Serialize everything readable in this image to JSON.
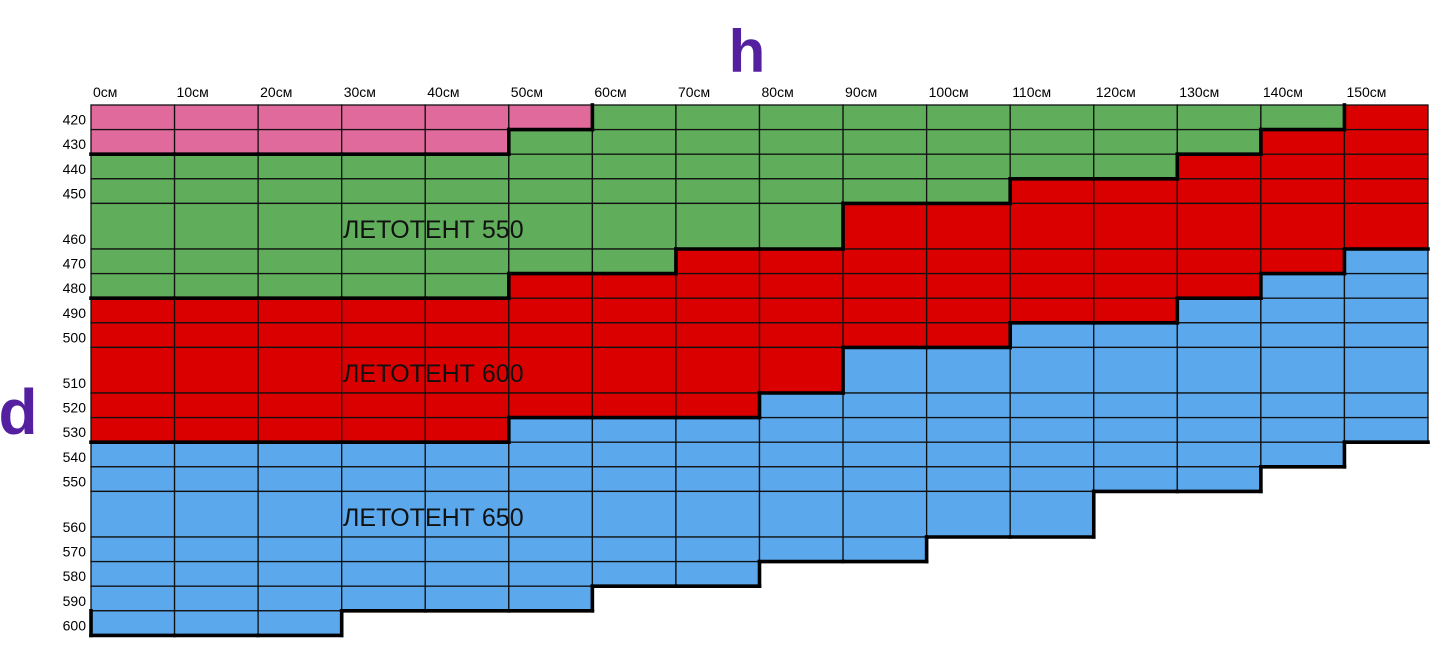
{
  "chart_data": {
    "type": "table",
    "x_axis_label": "h",
    "y_axis_label": "d",
    "columns": [
      "0см",
      "10см",
      "20см",
      "30см",
      "40см",
      "50см",
      "60см",
      "70см",
      "80см",
      "90см",
      "100см",
      "110см",
      "120см",
      "130см",
      "140см",
      "150см"
    ],
    "rows": [
      "420",
      "430",
      "440",
      "450",
      "460",
      "470",
      "480",
      "490",
      "500",
      "510",
      "520",
      "530",
      "540",
      "550",
      "560",
      "570",
      "580",
      "590",
      "600"
    ],
    "categories": [
      {
        "key": "P",
        "name": "",
        "color": "#e16a9c"
      },
      {
        "key": "G",
        "name": "ЛЕТОТЕНТ 550",
        "color": "#60ad5c"
      },
      {
        "key": "R",
        "name": "ЛЕТОТЕНТ 600",
        "color": "#db0000"
      },
      {
        "key": "B",
        "name": "ЛЕТОТЕНТ 650",
        "color": "#5ba8ec"
      }
    ],
    "grid": [
      "PPPPPPGGGGGGGGGR",
      "PPPPPGGGGGGGGGRR",
      "GGGGGGGGGGGGGRRR",
      "GGGGGGGGGGGRRRRR",
      "GGGGGGGGGRRRRRRR",
      "GGGGGGGRRRRRRRRB",
      "GGGGGRRRRRRRRRBB",
      "RRRRRRRRRRRRRBBB",
      "RRRRRRRRRRRBBBBB",
      "RRRRRRRRRBBBBBBB",
      "RRRRRRRRBBBBBBBB",
      "RRRRRBBBBBBBBBBB",
      "BBBBBBBBBBBBBBB.",
      "BBBBBBBBBBBBBB..",
      "BBBBBBBBBBBB....",
      "BBBBBBBBBB......",
      "BBBBBBBB........",
      "BBBBBB..........",
      "BBB............."
    ]
  }
}
